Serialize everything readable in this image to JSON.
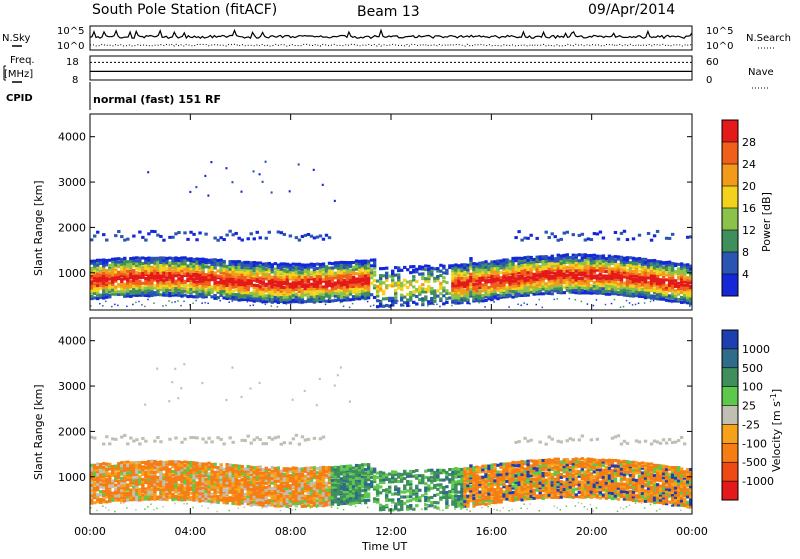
{
  "header": {
    "station": "South Pole Station (fitACF)",
    "beam": "Beam 13",
    "date": "09/Apr/2014"
  },
  "chart_data": [
    {
      "type": "line",
      "name": "noise-panel",
      "left_label": "N.Sky",
      "left_ticks": [
        "10^5",
        "10^0"
      ],
      "right_label": "N.Search",
      "right_ticks": [
        "10^5",
        "10^0"
      ],
      "series": [
        {
          "name": "N.Sky",
          "style": "solid",
          "level": 0.55
        },
        {
          "name": "N.Search",
          "style": "dotted",
          "level": 0.2
        }
      ]
    },
    {
      "type": "line",
      "name": "freq-panel",
      "left_label_line1": "Freq.",
      "left_label_line2": "[MHz]",
      "left_ticks": [
        "18",
        "8"
      ],
      "right_label": "Nave",
      "right_ticks": [
        "60",
        "0"
      ],
      "series": [
        {
          "name": "Freq",
          "style": "solid",
          "value_mhz": 11.6
        },
        {
          "name": "Nave",
          "style": "dotted",
          "value": 44
        }
      ]
    },
    {
      "type": "table",
      "name": "cpid-panel",
      "label": "CPID",
      "text": "normal (fast) 151 RF"
    },
    {
      "type": "heatmap",
      "name": "power-panel",
      "ylabel": "Slant Range [km]",
      "yticks": [
        1000,
        2000,
        3000,
        4000
      ],
      "ylim": [
        180,
        4500
      ],
      "colorbar_label": "Power [dB]",
      "colorbar_ticks": [
        "4",
        "8",
        "12",
        "16",
        "20",
        "24",
        "28"
      ],
      "colorbar_colors": [
        "#1428d8",
        "#2b55b3",
        "#3f8f5c",
        "#8bc34a",
        "#f2d21a",
        "#f39a1a",
        "#f0601a",
        "#e41a1a"
      ]
    },
    {
      "type": "heatmap",
      "name": "velocity-panel",
      "ylabel": "Slant Range [km]",
      "yticks": [
        1000,
        2000,
        3000,
        4000
      ],
      "ylim": [
        180,
        4500
      ],
      "colorbar_label": "Velocity [m s^-1]",
      "colorbar_ticks": [
        "1000",
        "500",
        "100",
        "25",
        "-25",
        "-100",
        "-500",
        "-1000"
      ],
      "colorbar_colors": [
        "#1e3fb0",
        "#2f6c8a",
        "#3f8f5c",
        "#5ec84a",
        "#bfbfb3",
        "#f5a21a",
        "#f57d14",
        "#ee4a14",
        "#e41a1a"
      ]
    }
  ],
  "time_axis": {
    "ticks": [
      "00:00",
      "04:00",
      "08:00",
      "12:00",
      "16:00",
      "20:00",
      "00:00"
    ],
    "label": "Time UT"
  },
  "colors": {
    "power": [
      "#1428d8",
      "#2b55b3",
      "#3f8f5c",
      "#8bc34a",
      "#f2d21a",
      "#f39a1a",
      "#f0601a",
      "#e41a1a"
    ],
    "velocity": [
      "#1e3fb0",
      "#2f6c8a",
      "#3f8f5c",
      "#5ec84a",
      "#bfbfb3",
      "#f5a21a",
      "#f57d14",
      "#ee4a14",
      "#e41a1a"
    ]
  }
}
